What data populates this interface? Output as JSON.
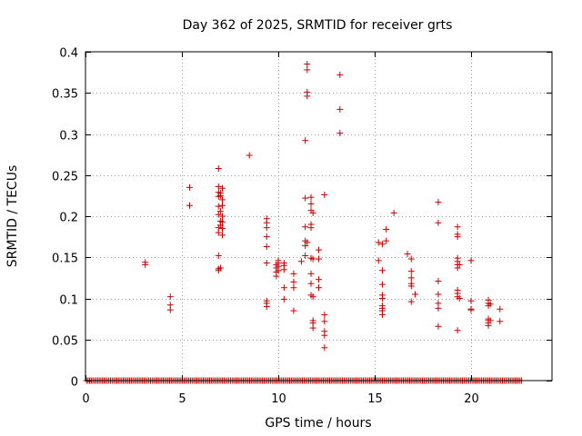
{
  "chart_data": {
    "type": "scatter",
    "title": "Day 362 of 2025, SRMTID for receiver grts",
    "xlabel": "GPS time / hours",
    "ylabel": "SRMTID / TECUs",
    "xlim": [
      0,
      24.2
    ],
    "ylim": [
      0,
      0.4
    ],
    "xticks": [
      0,
      5,
      10,
      15,
      20
    ],
    "xtick_labels": [
      "0",
      "5",
      "10",
      "15",
      "20"
    ],
    "yticks": [
      0,
      0.05,
      0.1,
      0.15,
      0.2,
      0.25,
      0.3,
      0.35,
      0.4
    ],
    "ytick_labels": [
      "0",
      "0.05",
      "0.1",
      "0.15",
      "0.2",
      "0.25",
      "0.3",
      "0.35",
      "0.4"
    ],
    "grid": true,
    "marker": "+",
    "color": "#cc0000",
    "zero_baseline": {
      "x_start": 0.05,
      "x_end": 22.65,
      "x_step": 0.083,
      "y": 0
    },
    "series": [
      {
        "name": "SRMTID",
        "points": [
          [
            3.1,
            0.144
          ],
          [
            3.1,
            0.141
          ],
          [
            4.4,
            0.102
          ],
          [
            4.4,
            0.092
          ],
          [
            4.4,
            0.086
          ],
          [
            5.4,
            0.235
          ],
          [
            5.4,
            0.213
          ],
          [
            6.9,
            0.258
          ],
          [
            6.9,
            0.236
          ],
          [
            6.9,
            0.229
          ],
          [
            6.9,
            0.224
          ],
          [
            6.9,
            0.212
          ],
          [
            6.9,
            0.202
          ],
          [
            6.9,
            0.186
          ],
          [
            6.9,
            0.18
          ],
          [
            6.9,
            0.152
          ],
          [
            6.9,
            0.136
          ],
          [
            6.9,
            0.134
          ],
          [
            7.0,
            0.228
          ],
          [
            7.0,
            0.225
          ],
          [
            7.0,
            0.206
          ],
          [
            7.0,
            0.194
          ],
          [
            7.0,
            0.189
          ],
          [
            7.0,
            0.137
          ],
          [
            7.1,
            0.234
          ],
          [
            7.1,
            0.22
          ],
          [
            7.1,
            0.213
          ],
          [
            7.1,
            0.2
          ],
          [
            7.1,
            0.193
          ],
          [
            7.1,
            0.185
          ],
          [
            7.1,
            0.177
          ],
          [
            8.5,
            0.274
          ],
          [
            9.4,
            0.197
          ],
          [
            9.4,
            0.192
          ],
          [
            9.4,
            0.186
          ],
          [
            9.4,
            0.175
          ],
          [
            9.4,
            0.163
          ],
          [
            9.4,
            0.143
          ],
          [
            9.4,
            0.097
          ],
          [
            9.4,
            0.094
          ],
          [
            9.4,
            0.09
          ],
          [
            9.9,
            0.141
          ],
          [
            9.9,
            0.137
          ],
          [
            9.9,
            0.132
          ],
          [
            9.9,
            0.127
          ],
          [
            10.0,
            0.146
          ],
          [
            10.0,
            0.143
          ],
          [
            10.0,
            0.139
          ],
          [
            10.0,
            0.134
          ],
          [
            10.3,
            0.143
          ],
          [
            10.3,
            0.14
          ],
          [
            10.3,
            0.135
          ],
          [
            10.3,
            0.113
          ],
          [
            10.3,
            0.099
          ],
          [
            10.8,
            0.13
          ],
          [
            10.8,
            0.12
          ],
          [
            10.8,
            0.113
          ],
          [
            10.8,
            0.085
          ],
          [
            11.2,
            0.145
          ],
          [
            11.4,
            0.292
          ],
          [
            11.4,
            0.222
          ],
          [
            11.4,
            0.187
          ],
          [
            11.4,
            0.17
          ],
          [
            11.4,
            0.164
          ],
          [
            11.4,
            0.152
          ],
          [
            11.5,
            0.385
          ],
          [
            11.5,
            0.378
          ],
          [
            11.5,
            0.351
          ],
          [
            11.5,
            0.346
          ],
          [
            11.5,
            0.168
          ],
          [
            11.7,
            0.223
          ],
          [
            11.7,
            0.215
          ],
          [
            11.7,
            0.207
          ],
          [
            11.7,
            0.19
          ],
          [
            11.7,
            0.186
          ],
          [
            11.7,
            0.149
          ],
          [
            11.7,
            0.13
          ],
          [
            11.7,
            0.118
          ],
          [
            11.7,
            0.104
          ],
          [
            11.8,
            0.204
          ],
          [
            11.8,
            0.148
          ],
          [
            11.8,
            0.102
          ],
          [
            11.8,
            0.073
          ],
          [
            11.8,
            0.07
          ],
          [
            11.8,
            0.064
          ],
          [
            12.1,
            0.159
          ],
          [
            12.1,
            0.148
          ],
          [
            12.1,
            0.123
          ],
          [
            12.1,
            0.113
          ],
          [
            12.4,
            0.226
          ],
          [
            12.4,
            0.08
          ],
          [
            12.4,
            0.072
          ],
          [
            12.4,
            0.06
          ],
          [
            12.4,
            0.055
          ],
          [
            12.4,
            0.04
          ],
          [
            13.2,
            0.372
          ],
          [
            13.2,
            0.33
          ],
          [
            13.2,
            0.301
          ],
          [
            15.2,
            0.168
          ],
          [
            15.2,
            0.146
          ],
          [
            15.4,
            0.166
          ],
          [
            15.4,
            0.134
          ],
          [
            15.4,
            0.117
          ],
          [
            15.4,
            0.104
          ],
          [
            15.4,
            0.1
          ],
          [
            15.4,
            0.091
          ],
          [
            15.4,
            0.088
          ],
          [
            15.4,
            0.085
          ],
          [
            15.4,
            0.08
          ],
          [
            15.6,
            0.184
          ],
          [
            15.6,
            0.17
          ],
          [
            16.0,
            0.204
          ],
          [
            16.7,
            0.154
          ],
          [
            16.9,
            0.148
          ],
          [
            16.9,
            0.133
          ],
          [
            16.9,
            0.125
          ],
          [
            16.9,
            0.118
          ],
          [
            16.9,
            0.115
          ],
          [
            16.9,
            0.096
          ],
          [
            17.1,
            0.105
          ],
          [
            18.3,
            0.217
          ],
          [
            18.3,
            0.192
          ],
          [
            18.3,
            0.121
          ],
          [
            18.3,
            0.105
          ],
          [
            18.3,
            0.094
          ],
          [
            18.3,
            0.088
          ],
          [
            18.3,
            0.066
          ],
          [
            19.3,
            0.187
          ],
          [
            19.3,
            0.178
          ],
          [
            19.3,
            0.175
          ],
          [
            19.3,
            0.149
          ],
          [
            19.3,
            0.145
          ],
          [
            19.3,
            0.141
          ],
          [
            19.3,
            0.137
          ],
          [
            19.3,
            0.11
          ],
          [
            19.3,
            0.106
          ],
          [
            19.3,
            0.102
          ],
          [
            19.3,
            0.061
          ],
          [
            19.4,
            0.141
          ],
          [
            19.4,
            0.1
          ],
          [
            20.0,
            0.146
          ],
          [
            20.0,
            0.097
          ],
          [
            20.0,
            0.087
          ],
          [
            20.0,
            0.086
          ],
          [
            20.9,
            0.098
          ],
          [
            20.9,
            0.094
          ],
          [
            20.9,
            0.091
          ],
          [
            20.9,
            0.075
          ],
          [
            20.9,
            0.073
          ],
          [
            20.9,
            0.07
          ],
          [
            20.9,
            0.067
          ],
          [
            21.0,
            0.093
          ],
          [
            21.0,
            0.073
          ],
          [
            21.5,
            0.087
          ],
          [
            21.5,
            0.072
          ]
        ]
      }
    ]
  }
}
